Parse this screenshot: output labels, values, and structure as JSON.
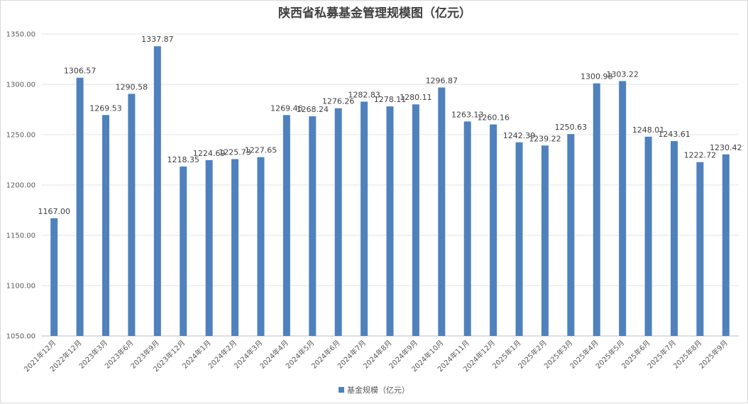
{
  "chart_data": {
    "type": "bar",
    "title": "陕西省私募基金管理规模图（亿元）",
    "xlabel": "",
    "ylabel": "",
    "ylim": [
      1050,
      1350
    ],
    "yticks": [
      "1050.00",
      "1100.00",
      "1150.00",
      "1200.00",
      "1250.00",
      "1300.00",
      "1350.00"
    ],
    "grid": true,
    "legend_position": "bottom",
    "bar_color": "#4f81bd",
    "categories": [
      "2021年12月",
      "2022年12月",
      "2023年3月",
      "2023年6月",
      "2023年9月",
      "2023年12月",
      "2024年1月",
      "2024年2月",
      "2024年3月",
      "2024年4月",
      "2024年5月",
      "2024年6月",
      "2024年7月",
      "2024年8月",
      "2024年9月",
      "2024年10月",
      "2024年11月",
      "2024年12月",
      "2025年1月",
      "2025年2月",
      "2025年3月",
      "2025年4月",
      "2025年5月",
      "2025年6月",
      "2025年7月",
      "2025年8月",
      "2025年9月"
    ],
    "series": [
      {
        "name": "基金规模（亿元）",
        "values": [
          1167.0,
          1306.57,
          1269.53,
          1290.58,
          1337.87,
          1218.35,
          1224.69,
          1225.73,
          1227.65,
          1269.46,
          1268.24,
          1276.26,
          1282.83,
          1278.11,
          1280.11,
          1296.87,
          1263.13,
          1260.16,
          1242.39,
          1239.22,
          1250.63,
          1300.98,
          1303.22,
          1248.01,
          1243.61,
          1222.72,
          1230.42
        ],
        "labels": [
          "1167.00",
          "1306.57",
          "1269.53",
          "1290.58",
          "1337.87",
          "1218.35",
          "1224.69",
          "1225.73",
          "1227.65",
          "1269.46",
          "1268.24",
          "1276.26",
          "1282.83",
          "1278.11",
          "1280.11",
          "1296.87",
          "1263.13",
          "1260.16",
          "1242.39",
          "1239.22",
          "1250.63",
          "1300.98",
          "1303.22",
          "1248.01",
          "1243.61",
          "1222.72",
          "1230.42"
        ]
      }
    ]
  }
}
